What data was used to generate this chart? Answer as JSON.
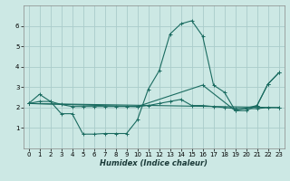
{
  "xlabel": "Humidex (Indice chaleur)",
  "bg_color": "#cce8e4",
  "grid_color": "#aaccca",
  "line_color": "#1a6b60",
  "xlim": [
    -0.5,
    23.5
  ],
  "ylim": [
    0,
    7
  ],
  "xticks": [
    0,
    1,
    2,
    3,
    4,
    5,
    6,
    7,
    8,
    9,
    10,
    11,
    12,
    13,
    14,
    15,
    16,
    17,
    18,
    19,
    20,
    21,
    22,
    23
  ],
  "yticks": [
    1,
    2,
    3,
    4,
    5,
    6
  ],
  "lines": [
    {
      "x": [
        0,
        1,
        2,
        3,
        4,
        5,
        6,
        7,
        8,
        9,
        10,
        11,
        12,
        13,
        14,
        15,
        16,
        17,
        18,
        19,
        20,
        21,
        22,
        23
      ],
      "y": [
        2.2,
        2.65,
        2.3,
        1.7,
        1.7,
        0.7,
        0.7,
        0.73,
        0.73,
        0.73,
        1.4,
        2.9,
        3.8,
        5.6,
        6.1,
        6.25,
        5.5,
        3.1,
        2.75,
        1.85,
        1.85,
        2.1,
        3.15,
        3.7
      ]
    },
    {
      "x": [
        0,
        1,
        2,
        3,
        4,
        5,
        6,
        7,
        8,
        9,
        10,
        11,
        12,
        13,
        14,
        15,
        16,
        17,
        18,
        19,
        20,
        21,
        22,
        23
      ],
      "y": [
        2.2,
        2.3,
        2.3,
        2.15,
        2.05,
        2.05,
        2.05,
        2.05,
        2.05,
        2.05,
        2.05,
        2.1,
        2.2,
        2.3,
        2.4,
        2.1,
        2.1,
        2.05,
        2.0,
        1.95,
        1.95,
        1.95,
        2.0,
        2.0
      ]
    },
    {
      "x": [
        0,
        23
      ],
      "y": [
        2.2,
        2.0
      ]
    },
    {
      "x": [
        0,
        10,
        16,
        19,
        21,
        22,
        23
      ],
      "y": [
        2.2,
        2.05,
        3.1,
        1.85,
        2.1,
        3.15,
        3.7
      ]
    }
  ]
}
